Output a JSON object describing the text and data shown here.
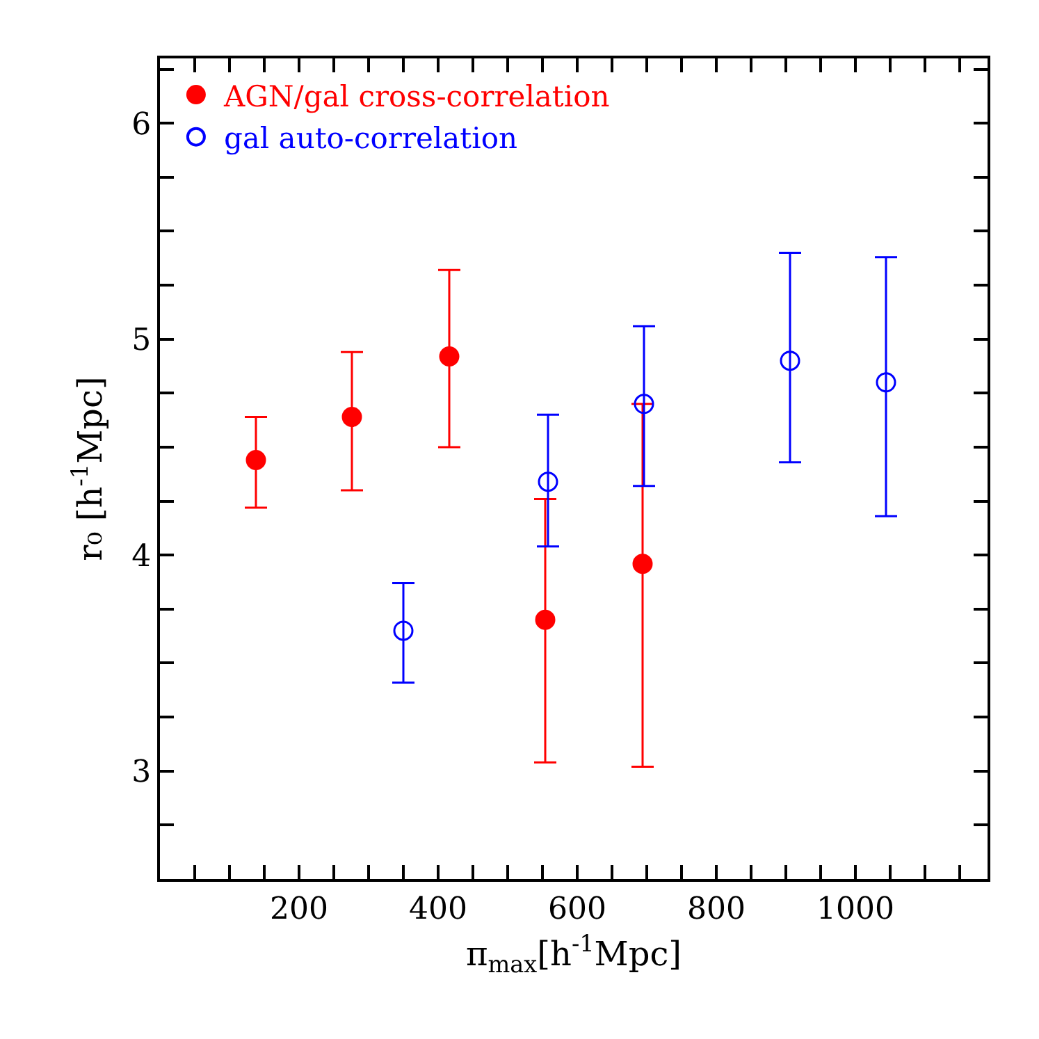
{
  "chart_data": {
    "type": "scatter",
    "xlabel": "π$_{max}$[h$^{-1}$Mpc]",
    "ylabel": "r₀ [h$^{-1}$Mpc]",
    "xlim": [
      0,
      1190
    ],
    "xticks": [
      {
        "value": 50,
        "label": null
      },
      {
        "value": 100,
        "label": null
      },
      {
        "value": 150,
        "label": null
      },
      200,
      {
        "value": 250,
        "label": null
      },
      {
        "value": 300,
        "label": null
      },
      {
        "value": 350,
        "label": null
      },
      400,
      {
        "value": 450,
        "label": null
      },
      {
        "value": 500,
        "label": null
      },
      {
        "value": 550,
        "label": null
      },
      600,
      {
        "value": 650,
        "label": null
      },
      {
        "value": 700,
        "label": null
      },
      {
        "value": 750,
        "label": null
      },
      800,
      {
        "value": 850,
        "label": null
      },
      {
        "value": 900,
        "label": null
      },
      {
        "value": 950,
        "label": null
      },
      1000,
      {
        "value": 1050,
        "label": null
      },
      {
        "value": 1100,
        "label": null
      },
      {
        "value": 1150,
        "label": null
      }
    ],
    "ylim": [
      2.5,
      6.3
    ],
    "yticks": [
      {
        "value": 2.75,
        "label": null
      },
      3,
      {
        "value": 3.25,
        "label": null
      },
      {
        "value": 3.5,
        "label": null
      },
      {
        "value": 3.75,
        "label": null
      },
      4,
      {
        "value": 4.25,
        "label": null
      },
      {
        "value": 4.5,
        "label": null
      },
      {
        "value": 4.75,
        "label": null
      },
      5,
      {
        "value": 5.25,
        "label": null
      },
      {
        "value": 5.5,
        "label": null
      },
      {
        "value": 5.75,
        "label": null
      },
      6,
      {
        "value": 6.25,
        "label": null
      }
    ],
    "grid": false,
    "legend": "top left",
    "marker": "circle",
    "series": [
      {
        "name": "AGN/gal cross-correlation",
        "color": "#ff0000",
        "x": [
          138,
          276,
          416,
          554,
          694
        ],
        "values": [
          4.44,
          4.64,
          4.92,
          3.7,
          3.96
        ],
        "errors": [
          [
            4.22,
            4.64
          ],
          [
            4.3,
            4.94
          ],
          [
            4.5,
            5.32
          ],
          [
            3.04,
            4.26
          ],
          [
            3.02,
            4.7
          ]
        ]
      },
      {
        "name": "gal auto-correlation",
        "color": "#0000ff",
        "x": [
          350,
          558,
          696,
          906,
          1044
        ],
        "values": [
          3.65,
          4.34,
          4.7,
          4.9,
          4.8
        ],
        "errors": [
          [
            3.41,
            3.87
          ],
          [
            4.04,
            4.65
          ],
          [
            4.32,
            5.06
          ],
          [
            4.43,
            5.4
          ],
          [
            4.18,
            5.38
          ]
        ]
      }
    ]
  }
}
